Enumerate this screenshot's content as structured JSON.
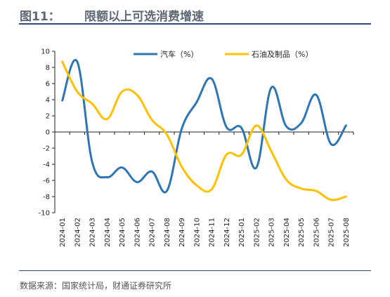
{
  "header": {
    "figure_no": "图11：",
    "title": "限额以上可选消费增速"
  },
  "source": "数据来源：国家统计局，财通证券研究所",
  "colors": {
    "auto": "#2e75b6",
    "petro": "#ffc000",
    "rule": "#2f4f7a",
    "header_text": "#5e6874"
  },
  "chart_data": {
    "type": "line",
    "title": "",
    "xlabel": "",
    "ylabel": "",
    "ylim": [
      -10,
      10
    ],
    "yticks": [
      10,
      8,
      6,
      4,
      2,
      0,
      -2,
      -4,
      -6,
      -8,
      -10
    ],
    "grid": false,
    "legend_position": "top",
    "x_labels": [
      "2024-01",
      "2024-02",
      "2024-03",
      "2024-04",
      "2024-05",
      "2024-06",
      "2024-07",
      "2024-08",
      "2024-09",
      "2024-10",
      "2024-11",
      "2024-12",
      "2025-01",
      "2025-02",
      "2025-03",
      "2025-04",
      "2025-05",
      "2025-06",
      "2025-07",
      "2025-08"
    ],
    "series": [
      {
        "name": "汽车（%）",
        "color": "#2e75b6",
        "values": [
          3.9,
          8.7,
          -3.7,
          -5.6,
          -4.4,
          -6.2,
          -4.9,
          -7.3,
          0.4,
          3.7,
          6.6,
          0.6,
          0.5,
          -4.4,
          5.5,
          0.7,
          1.1,
          4.6,
          -1.5,
          0.8
        ]
      },
      {
        "name": "石油及制品（%）",
        "color": "#ffc000",
        "values": [
          8.7,
          5.0,
          3.5,
          1.6,
          5.0,
          4.6,
          1.5,
          -0.3,
          -4.3,
          -6.6,
          -7.1,
          -2.8,
          -2.8,
          0.8,
          -2.4,
          -5.9,
          -7.0,
          -7.3,
          -8.4,
          -8.0
        ]
      }
    ]
  }
}
